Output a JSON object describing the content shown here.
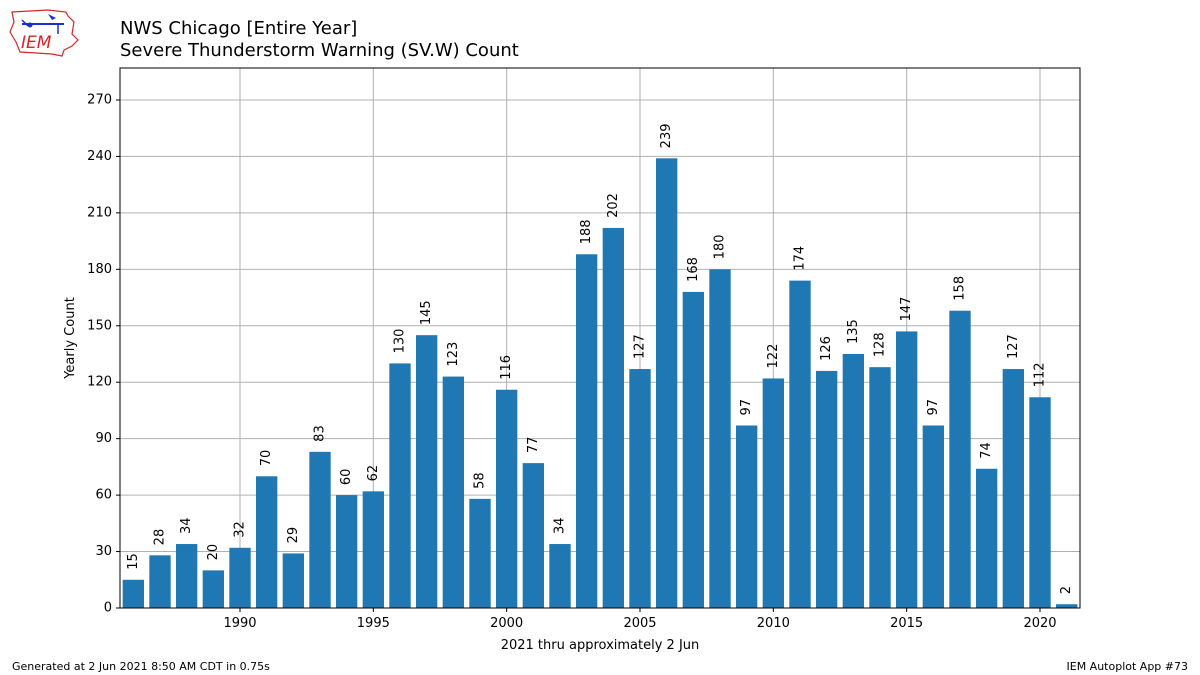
{
  "title_line1": "NWS Chicago [Entire Year]",
  "title_line2": "Severe Thunderstorm Warning (SV.W) Count",
  "footer_left": "Generated at 2 Jun 2021 8:50 AM CDT in 0.75s",
  "footer_right": "IEM Autoplot App #73",
  "logo_text": "IEM",
  "colors": {
    "bar": "#1f77b4",
    "grid": "#b0b0b0",
    "logo": "#d62728"
  },
  "chart_data": {
    "type": "bar",
    "title": "NWS Chicago [Entire Year]\nSevere Thunderstorm Warning (SV.W) Count",
    "xlabel": "2021 thru approximately 2 Jun",
    "ylabel": "Yearly Count",
    "x": [
      1986,
      1987,
      1988,
      1989,
      1990,
      1991,
      1992,
      1993,
      1994,
      1995,
      1996,
      1997,
      1998,
      1999,
      2000,
      2001,
      2002,
      2003,
      2004,
      2005,
      2006,
      2007,
      2008,
      2009,
      2010,
      2011,
      2012,
      2013,
      2014,
      2015,
      2016,
      2017,
      2018,
      2019,
      2020,
      2021
    ],
    "values": [
      15,
      28,
      34,
      20,
      32,
      70,
      29,
      83,
      60,
      62,
      130,
      145,
      123,
      58,
      116,
      77,
      34,
      188,
      202,
      127,
      239,
      168,
      180,
      97,
      122,
      174,
      126,
      135,
      128,
      147,
      97,
      158,
      74,
      127,
      112,
      2
    ],
    "xticks": [
      1990,
      1995,
      2000,
      2005,
      2010,
      2015,
      2020
    ],
    "yticks": [
      0,
      30,
      60,
      90,
      120,
      150,
      180,
      210,
      240,
      270
    ],
    "xlim": [
      1985.5,
      2021.5
    ],
    "ylim": [
      0,
      287
    ],
    "grid": true,
    "data_labels": true
  }
}
